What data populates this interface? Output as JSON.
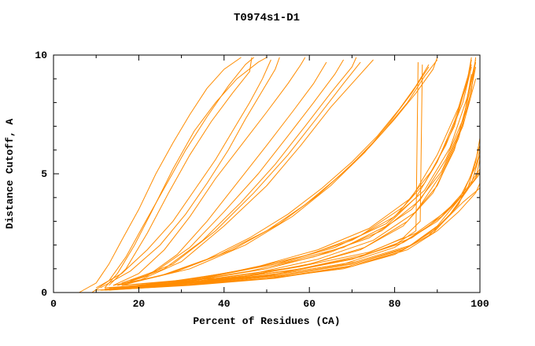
{
  "title": "T0974s1-D1",
  "chart_data": {
    "type": "line",
    "title": "T0974s1-D1",
    "xlabel": "Percent of Residues (CA)",
    "ylabel": "Distance Cutoff, A",
    "xlim": [
      0,
      100
    ],
    "ylim": [
      0,
      10
    ],
    "xticks_major": [
      0,
      20,
      40,
      60,
      80,
      100
    ],
    "xticks_minor": [
      10,
      30,
      50,
      70,
      90
    ],
    "yticks_major": [
      0,
      5,
      10
    ],
    "yticks_minor": [
      1,
      2,
      3,
      4,
      6,
      7,
      8,
      9
    ],
    "grid": false,
    "legend_position": "none",
    "line_color": "#ff8c00",
    "axis_color": "#000000",
    "curves": [
      [
        [
          6,
          0
        ],
        [
          10,
          0.4
        ],
        [
          13,
          1.2
        ],
        [
          16,
          2.2
        ],
        [
          20,
          3.5
        ],
        [
          24,
          5.0
        ],
        [
          28,
          6.3
        ],
        [
          32,
          7.5
        ],
        [
          36,
          8.6
        ],
        [
          40,
          9.4
        ],
        [
          44,
          9.9
        ]
      ],
      [
        [
          9,
          0
        ],
        [
          13,
          0.5
        ],
        [
          17,
          1.5
        ],
        [
          21,
          2.8
        ],
        [
          26,
          4.4
        ],
        [
          31,
          6.0
        ],
        [
          36,
          7.4
        ],
        [
          41,
          8.7
        ],
        [
          45,
          9.6
        ],
        [
          47,
          9.9
        ]
      ],
      [
        [
          12,
          0.2
        ],
        [
          15,
          0.8
        ],
        [
          19,
          2.0
        ],
        [
          23,
          3.4
        ],
        [
          28,
          5.2
        ],
        [
          33,
          6.8
        ],
        [
          38,
          8.0
        ],
        [
          43,
          9.0
        ],
        [
          48,
          9.7
        ],
        [
          50,
          9.9
        ]
      ],
      [
        [
          13,
          0.3
        ],
        [
          17,
          1.0
        ],
        [
          22,
          2.5
        ],
        [
          27,
          4.2
        ],
        [
          32,
          5.8
        ],
        [
          37,
          7.2
        ],
        [
          42,
          8.4
        ],
        [
          46,
          9.3
        ],
        [
          46.5,
          9.9
        ]
      ],
      [
        [
          10,
          0.2
        ],
        [
          16,
          0.8
        ],
        [
          22,
          1.8
        ],
        [
          28,
          3.0
        ],
        [
          33,
          4.3
        ],
        [
          38,
          5.6
        ],
        [
          42,
          6.8
        ],
        [
          46,
          8.0
        ],
        [
          49,
          9.0
        ],
        [
          51,
          9.8
        ]
      ],
      [
        [
          11,
          0.2
        ],
        [
          18,
          0.9
        ],
        [
          25,
          2.0
        ],
        [
          31,
          3.3
        ],
        [
          36,
          4.6
        ],
        [
          41,
          6.0
        ],
        [
          45,
          7.3
        ],
        [
          49,
          8.5
        ],
        [
          52,
          9.4
        ],
        [
          53,
          9.9
        ]
      ],
      [
        [
          14,
          0.3
        ],
        [
          20,
          0.8
        ],
        [
          26,
          1.8
        ],
        [
          32,
          3.2
        ],
        [
          38,
          4.8
        ],
        [
          44,
          6.2
        ],
        [
          50,
          7.6
        ],
        [
          55,
          8.8
        ],
        [
          58,
          9.6
        ],
        [
          59,
          9.9
        ]
      ],
      [
        [
          15,
          0.3
        ],
        [
          22,
          0.7
        ],
        [
          29,
          1.6
        ],
        [
          36,
          3.0
        ],
        [
          43,
          4.6
        ],
        [
          50,
          6.2
        ],
        [
          56,
          7.6
        ],
        [
          61,
          8.8
        ],
        [
          64,
          9.7
        ]
      ],
      [
        [
          16,
          0.4
        ],
        [
          24,
          0.9
        ],
        [
          32,
          1.9
        ],
        [
          40,
          3.4
        ],
        [
          48,
          5.0
        ],
        [
          55,
          6.6
        ],
        [
          61,
          8.0
        ],
        [
          66,
          9.2
        ],
        [
          68,
          9.8
        ]
      ],
      [
        [
          17,
          0.4
        ],
        [
          26,
          1.0
        ],
        [
          35,
          2.2
        ],
        [
          44,
          3.8
        ],
        [
          52,
          5.4
        ],
        [
          59,
          7.0
        ],
        [
          65,
          8.4
        ],
        [
          70,
          9.5
        ],
        [
          71,
          9.9
        ]
      ],
      [
        [
          18,
          0.5
        ],
        [
          28,
          1.2
        ],
        [
          38,
          2.6
        ],
        [
          47,
          4.2
        ],
        [
          55,
          5.8
        ],
        [
          62,
          7.4
        ],
        [
          68,
          8.8
        ],
        [
          72,
          9.7
        ]
      ],
      [
        [
          20,
          0.5
        ],
        [
          30,
          1.3
        ],
        [
          40,
          2.8
        ],
        [
          50,
          4.5
        ],
        [
          58,
          6.2
        ],
        [
          65,
          7.8
        ],
        [
          71,
          9.0
        ],
        [
          75,
          9.8
        ]
      ],
      [
        [
          14,
          0.3
        ],
        [
          25,
          0.7
        ],
        [
          36,
          1.4
        ],
        [
          46,
          2.3
        ],
        [
          55,
          3.3
        ],
        [
          63,
          4.4
        ],
        [
          70,
          5.5
        ],
        [
          76,
          6.6
        ],
        [
          81,
          7.7
        ],
        [
          85,
          8.7
        ],
        [
          88,
          9.6
        ]
      ],
      [
        [
          15,
          0.3
        ],
        [
          27,
          0.8
        ],
        [
          39,
          1.6
        ],
        [
          50,
          2.6
        ],
        [
          59,
          3.7
        ],
        [
          67,
          4.9
        ],
        [
          74,
          6.1
        ],
        [
          80,
          7.3
        ],
        [
          85,
          8.4
        ],
        [
          89,
          9.4
        ],
        [
          90,
          9.9
        ]
      ],
      [
        [
          16,
          0.3
        ],
        [
          29,
          0.9
        ],
        [
          42,
          1.8
        ],
        [
          53,
          2.9
        ],
        [
          62,
          4.1
        ],
        [
          70,
          5.4
        ],
        [
          77,
          6.7
        ],
        [
          83,
          8.0
        ],
        [
          87,
          9.1
        ],
        [
          90,
          9.8
        ]
      ],
      [
        [
          18,
          0.4
        ],
        [
          32,
          1.0
        ],
        [
          45,
          2.0
        ],
        [
          56,
          3.2
        ],
        [
          65,
          4.5
        ],
        [
          73,
          5.9
        ],
        [
          79,
          7.2
        ],
        [
          84,
          8.4
        ],
        [
          88,
          9.5
        ]
      ],
      [
        [
          14,
          0.2
        ],
        [
          35,
          0.5
        ],
        [
          55,
          0.9
        ],
        [
          70,
          1.4
        ],
        [
          80,
          2.0
        ],
        [
          85,
          2.6
        ],
        [
          85.5,
          9.7
        ]
      ],
      [
        [
          15,
          0.2
        ],
        [
          38,
          0.5
        ],
        [
          58,
          1.0
        ],
        [
          73,
          1.6
        ],
        [
          82,
          2.3
        ],
        [
          86,
          3.0
        ],
        [
          86.5,
          9.6
        ]
      ],
      [
        [
          12,
          0.1
        ],
        [
          25,
          0.4
        ],
        [
          40,
          0.8
        ],
        [
          55,
          1.3
        ],
        [
          68,
          1.9
        ],
        [
          78,
          2.8
        ],
        [
          85,
          4.0
        ],
        [
          90,
          5.5
        ],
        [
          94,
          7.2
        ],
        [
          97,
          8.8
        ],
        [
          98,
          9.8
        ]
      ],
      [
        [
          13,
          0.1
        ],
        [
          27,
          0.4
        ],
        [
          43,
          0.9
        ],
        [
          58,
          1.5
        ],
        [
          70,
          2.2
        ],
        [
          80,
          3.2
        ],
        [
          87,
          4.6
        ],
        [
          92,
          6.2
        ],
        [
          96,
          8.0
        ],
        [
          98,
          9.5
        ]
      ],
      [
        [
          14,
          0.2
        ],
        [
          30,
          0.5
        ],
        [
          46,
          1.0
        ],
        [
          60,
          1.6
        ],
        [
          72,
          2.4
        ],
        [
          82,
          3.6
        ],
        [
          89,
          5.2
        ],
        [
          94,
          7.0
        ],
        [
          97,
          8.9
        ],
        [
          98,
          9.9
        ]
      ],
      [
        [
          15,
          0.2
        ],
        [
          32,
          0.5
        ],
        [
          48,
          1.1
        ],
        [
          62,
          1.8
        ],
        [
          74,
          2.7
        ],
        [
          84,
          4.0
        ],
        [
          90,
          5.8
        ],
        [
          95,
          7.8
        ],
        [
          98,
          9.6
        ]
      ],
      [
        [
          12,
          0.1
        ],
        [
          28,
          0.3
        ],
        [
          45,
          0.7
        ],
        [
          60,
          1.2
        ],
        [
          73,
          1.9
        ],
        [
          83,
          3.0
        ],
        [
          90,
          4.5
        ],
        [
          95,
          6.5
        ],
        [
          98,
          8.5
        ],
        [
          99,
          9.9
        ]
      ],
      [
        [
          13,
          0.2
        ],
        [
          30,
          0.4
        ],
        [
          47,
          0.8
        ],
        [
          62,
          1.4
        ],
        [
          75,
          2.2
        ],
        [
          85,
          3.4
        ],
        [
          91,
          5.0
        ],
        [
          96,
          7.0
        ],
        [
          99,
          9.0
        ]
      ],
      [
        [
          14,
          0.2
        ],
        [
          33,
          0.5
        ],
        [
          50,
          1.0
        ],
        [
          65,
          1.7
        ],
        [
          77,
          2.6
        ],
        [
          86,
          3.9
        ],
        [
          92,
          5.6
        ],
        [
          97,
          7.7
        ],
        [
          99,
          9.5
        ]
      ],
      [
        [
          16,
          0.3
        ],
        [
          35,
          0.6
        ],
        [
          52,
          1.2
        ],
        [
          66,
          1.9
        ],
        [
          78,
          2.9
        ],
        [
          87,
          4.3
        ],
        [
          93,
          6.1
        ],
        [
          97,
          8.2
        ],
        [
          99,
          9.8
        ]
      ],
      [
        [
          11,
          0.1
        ],
        [
          26,
          0.3
        ],
        [
          42,
          0.6
        ],
        [
          58,
          1.1
        ],
        [
          72,
          1.8
        ],
        [
          82,
          2.8
        ],
        [
          89,
          4.2
        ],
        [
          94,
          6.0
        ],
        [
          97,
          8.0
        ],
        [
          99,
          9.7
        ]
      ],
      [
        [
          12,
          0.2
        ],
        [
          29,
          0.4
        ],
        [
          46,
          0.9
        ],
        [
          61,
          1.5
        ],
        [
          74,
          2.3
        ],
        [
          84,
          3.5
        ],
        [
          91,
          5.1
        ],
        [
          96,
          7.1
        ],
        [
          98,
          9.2
        ]
      ],
      [
        [
          13,
          0.1
        ],
        [
          30,
          0.3
        ],
        [
          50,
          0.7
        ],
        [
          68,
          1.2
        ],
        [
          80,
          1.9
        ],
        [
          88,
          2.8
        ],
        [
          93,
          3.6
        ],
        [
          97,
          4.4
        ],
        [
          100,
          5.2
        ]
      ],
      [
        [
          14,
          0.2
        ],
        [
          33,
          0.4
        ],
        [
          53,
          0.8
        ],
        [
          70,
          1.4
        ],
        [
          82,
          2.1
        ],
        [
          90,
          3.0
        ],
        [
          95,
          3.9
        ],
        [
          99,
          4.8
        ],
        [
          100,
          5.6
        ]
      ],
      [
        [
          15,
          0.2
        ],
        [
          35,
          0.5
        ],
        [
          55,
          0.9
        ],
        [
          72,
          1.5
        ],
        [
          84,
          2.3
        ],
        [
          91,
          3.2
        ],
        [
          96,
          4.1
        ],
        [
          100,
          5.0
        ]
      ],
      [
        [
          16,
          0.3
        ],
        [
          38,
          0.6
        ],
        [
          58,
          1.1
        ],
        [
          74,
          1.7
        ],
        [
          85,
          2.5
        ],
        [
          92,
          3.4
        ],
        [
          97,
          4.3
        ],
        [
          100,
          5.1
        ]
      ],
      [
        [
          12,
          0.1
        ],
        [
          32,
          0.3
        ],
        [
          52,
          0.6
        ],
        [
          70,
          1.1
        ],
        [
          83,
          1.8
        ],
        [
          90,
          2.6
        ],
        [
          95,
          3.4
        ],
        [
          99,
          4.2
        ],
        [
          100,
          4.6
        ]
      ],
      [
        [
          13,
          0.2
        ],
        [
          34,
          0.4
        ],
        [
          54,
          0.8
        ],
        [
          71,
          1.3
        ],
        [
          84,
          2.0
        ],
        [
          91,
          2.9
        ],
        [
          96,
          3.8
        ],
        [
          100,
          4.4
        ]
      ],
      [
        [
          10,
          0.1
        ],
        [
          30,
          0.3
        ],
        [
          50,
          0.6
        ],
        [
          68,
          1.0
        ],
        [
          80,
          1.6
        ],
        [
          88,
          2.4
        ],
        [
          93,
          3.3
        ],
        [
          97,
          4.3
        ],
        [
          99,
          5.5
        ],
        [
          100,
          6.5
        ]
      ],
      [
        [
          11,
          0.1
        ],
        [
          31,
          0.3
        ],
        [
          51,
          0.6
        ],
        [
          69,
          1.1
        ],
        [
          81,
          1.7
        ],
        [
          89,
          2.5
        ],
        [
          94,
          3.5
        ],
        [
          98,
          4.6
        ],
        [
          100,
          5.8
        ]
      ],
      [
        [
          12,
          0.15
        ],
        [
          33,
          0.35
        ],
        [
          53,
          0.7
        ],
        [
          70,
          1.2
        ],
        [
          82,
          1.8
        ],
        [
          90,
          2.7
        ],
        [
          95,
          3.7
        ],
        [
          98,
          5.0
        ],
        [
          100,
          6.2
        ]
      ],
      [
        [
          13,
          0.15
        ],
        [
          34,
          0.4
        ],
        [
          54,
          0.75
        ],
        [
          71,
          1.25
        ],
        [
          83,
          1.9
        ],
        [
          90,
          2.8
        ],
        [
          95,
          3.9
        ],
        [
          99,
          5.3
        ],
        [
          100,
          6.0
        ]
      ]
    ]
  }
}
